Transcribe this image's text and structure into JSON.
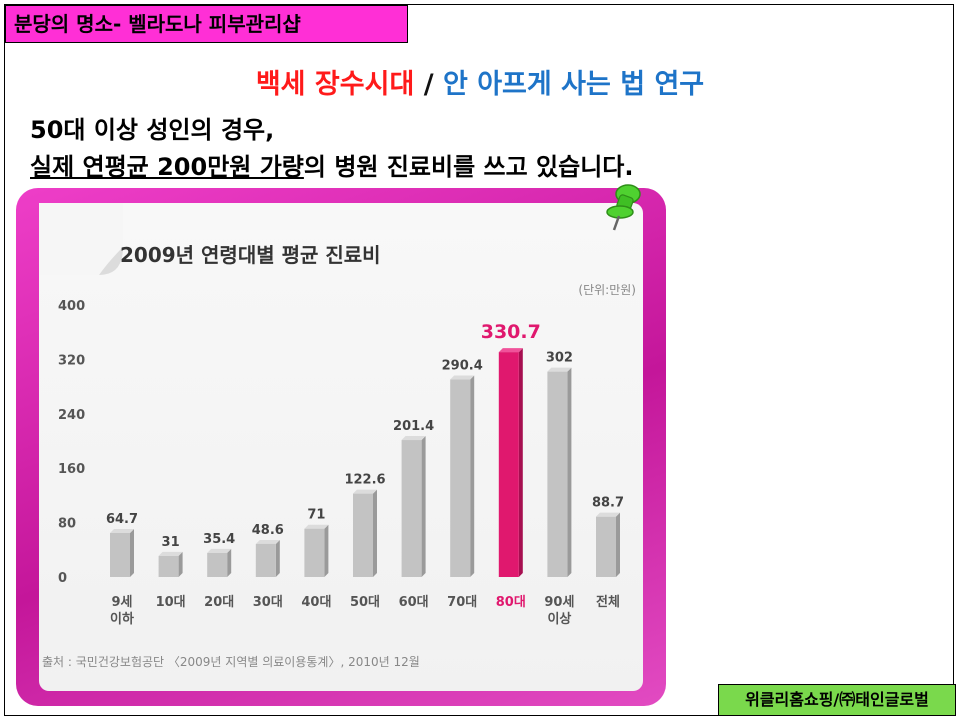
{
  "header": {
    "tag": "분당의 명소- 벨라도나 피부관리샵"
  },
  "title": {
    "part1": "백세 장수시대",
    "separator": " / ",
    "part2": "안 아프게 사는 법 연구"
  },
  "subtitle": {
    "line1": "50대 이상 성인의 경우,",
    "line2_underlined_a": "실제 연평균 200만원 가량",
    "line2_rest": "의 병원 진료비를 쓰고 있습니다."
  },
  "footer": {
    "badge": "위클리홈쇼핑/㈜태인글로벌"
  },
  "colors": {
    "bar": "#c3c3c3",
    "highlight": "#e0186e",
    "card": "#d21aa6",
    "header_bg": "#ff2fd6",
    "footer_bg": "#7ad94c"
  },
  "chart_data": {
    "type": "bar",
    "title": "2009년 연령대별 평균 진료비",
    "unit_label": "(단위:만원)",
    "source": "출처 : 국민건강보험공단 〈2009년 지역별 의료이용통계〉, 2010년 12월",
    "categories": [
      "9세 이하",
      "10대",
      "20대",
      "30대",
      "40대",
      "50대",
      "60대",
      "70대",
      "80대",
      "90세 이상",
      "전체"
    ],
    "values": [
      64.7,
      31,
      35.4,
      48.6,
      71,
      122.6,
      201.4,
      290.4,
      330.7,
      302,
      88.7
    ],
    "value_labels": [
      "64.7",
      "31",
      "35.4",
      "48.6",
      "71",
      "122.6",
      "201.4",
      "290.4",
      "330.7",
      "302",
      "88.7"
    ],
    "highlight_index": 8,
    "ylim": [
      0,
      400
    ],
    "yticks": [
      0,
      80,
      160,
      240,
      320,
      400
    ],
    "grid": false
  }
}
